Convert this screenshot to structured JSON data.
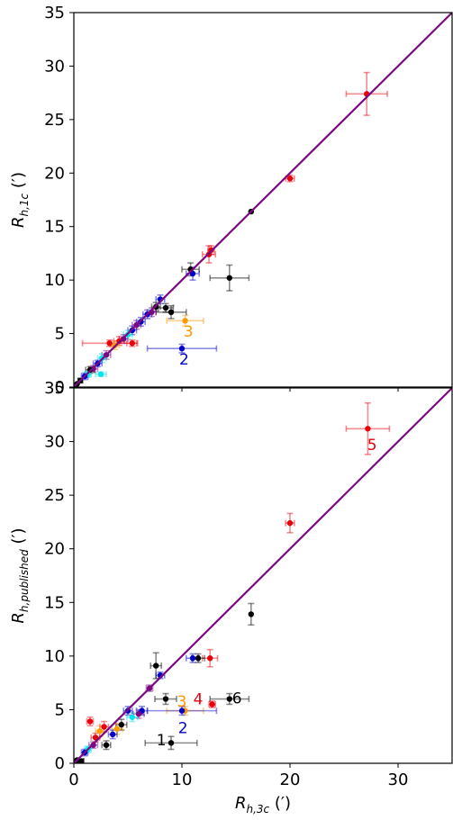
{
  "chart_data": [
    {
      "type": "scatter",
      "panel": "top",
      "xlim": [
        0,
        35
      ],
      "ylim": [
        0,
        35
      ],
      "x_ticks": [
        "0",
        "10",
        "20",
        "30"
      ],
      "y_ticks": [
        "0",
        "5",
        "10",
        "15",
        "20",
        "25",
        "30",
        "35"
      ],
      "xlabel": "",
      "ylabel": {
        "main": "R",
        "sub": "h,1c",
        "unit": " (′)"
      },
      "one_to_one_line": {
        "x": [
          0,
          35
        ],
        "y": [
          0,
          35
        ],
        "color": "#7b0a82"
      },
      "points": [
        {
          "x": 27.1,
          "y": 27.4,
          "xerr": 1.9,
          "yerr": 2.0,
          "color": "#e8000b"
        },
        {
          "x": 20.0,
          "y": 19.5,
          "xerr": 0.4,
          "yerr": 0.3,
          "color": "#e8000b"
        },
        {
          "x": 16.4,
          "y": 16.4,
          "xerr": 0.0,
          "yerr": 0.0,
          "color": "#000000"
        },
        {
          "x": 14.4,
          "y": 10.2,
          "xerr": 1.8,
          "yerr": 1.2,
          "color": "#000000"
        },
        {
          "x": 12.7,
          "y": 12.8,
          "xerr": 0.3,
          "yerr": 0.4,
          "color": "#e8000b"
        },
        {
          "x": 12.5,
          "y": 12.4,
          "xerr": 0.6,
          "yerr": 0.8,
          "color": "#e8000b"
        },
        {
          "x": 11.0,
          "y": 10.6,
          "xerr": 0.6,
          "yerr": 0.6,
          "color": "#0000cc"
        },
        {
          "x": 10.8,
          "y": 11.0,
          "xerr": 0.8,
          "yerr": 0.6,
          "color": "#000000"
        },
        {
          "x": 10.3,
          "y": 6.2,
          "xerr": 1.7,
          "yerr": 0.5,
          "color": "#ff9900"
        },
        {
          "x": 10.0,
          "y": 3.6,
          "xerr": 3.2,
          "yerr": 0.4,
          "color": "#0000cc"
        },
        {
          "x": 9.0,
          "y": 7.0,
          "xerr": 1.4,
          "yerr": 0.6,
          "color": "#000000"
        },
        {
          "x": 8.5,
          "y": 7.4,
          "xerr": 0.7,
          "yerr": 0.4,
          "color": "#000000"
        },
        {
          "x": 8.0,
          "y": 8.2,
          "xerr": 0.4,
          "yerr": 0.4,
          "color": "#0000cc"
        },
        {
          "x": 7.6,
          "y": 7.5,
          "xerr": 0.4,
          "yerr": 0.4,
          "color": "#000000"
        },
        {
          "x": 7.2,
          "y": 7.0,
          "xerr": 0.4,
          "yerr": 0.4,
          "color": "#7b0a82"
        },
        {
          "x": 6.8,
          "y": 6.8,
          "xerr": 0.4,
          "yerr": 0.4,
          "color": "#0000cc"
        },
        {
          "x": 6.2,
          "y": 6.1,
          "xerr": 0.4,
          "yerr": 0.4,
          "color": "#0000cc"
        },
        {
          "x": 5.8,
          "y": 5.8,
          "xerr": 0.4,
          "yerr": 0.4,
          "color": "#7b0a82"
        },
        {
          "x": 5.4,
          "y": 5.3,
          "xerr": 0.4,
          "yerr": 0.4,
          "color": "#0000cc"
        },
        {
          "x": 5.4,
          "y": 4.1,
          "xerr": 0.5,
          "yerr": 0.3,
          "color": "#e8000b"
        },
        {
          "x": 5.0,
          "y": 4.9,
          "xerr": 0.4,
          "yerr": 0.4,
          "color": "#00e5ee"
        },
        {
          "x": 4.6,
          "y": 4.5,
          "xerr": 0.4,
          "yerr": 0.4,
          "color": "#7b0a82"
        },
        {
          "x": 4.2,
          "y": 4.3,
          "xerr": 0.5,
          "yerr": 0.4,
          "color": "#e8000b"
        },
        {
          "x": 3.8,
          "y": 3.9,
          "xerr": 0.4,
          "yerr": 0.4,
          "color": "#ff9900"
        },
        {
          "x": 3.3,
          "y": 4.1,
          "xerr": 2.5,
          "yerr": 0.3,
          "color": "#e8000b"
        },
        {
          "x": 3.0,
          "y": 3.0,
          "xerr": 0.4,
          "yerr": 0.4,
          "color": "#7b0a82"
        },
        {
          "x": 2.6,
          "y": 2.7,
          "xerr": 0.4,
          "yerr": 0.4,
          "color": "#00e5ee"
        },
        {
          "x": 2.5,
          "y": 1.2,
          "xerr": 0.5,
          "yerr": 0.2,
          "color": "#00e5ee"
        },
        {
          "x": 2.2,
          "y": 2.2,
          "xerr": 0.4,
          "yerr": 0.3,
          "color": "#0000cc"
        },
        {
          "x": 1.8,
          "y": 1.7,
          "xerr": 0.4,
          "yerr": 0.3,
          "color": "#7b0a82"
        },
        {
          "x": 1.5,
          "y": 1.6,
          "xerr": 0.4,
          "yerr": 0.3,
          "color": "#000000"
        },
        {
          "x": 1.3,
          "y": 1.2,
          "xerr": 0.3,
          "yerr": 0.3,
          "color": "#00e5ee"
        },
        {
          "x": 1.0,
          "y": 1.0,
          "xerr": 0.3,
          "yerr": 0.3,
          "color": "#0000cc"
        },
        {
          "x": 0.6,
          "y": 0.6,
          "xerr": 0.2,
          "yerr": 0.2,
          "color": "#000000"
        },
        {
          "x": 0.3,
          "y": 0.3,
          "xerr": 0.0,
          "yerr": 0.0,
          "color": "#000000"
        }
      ],
      "annotations": [
        {
          "text": "3",
          "x": 10.6,
          "y": 5.2,
          "color": "#ff9900"
        },
        {
          "text": "2",
          "x": 10.2,
          "y": 2.6,
          "color": "#0000cc"
        }
      ]
    },
    {
      "type": "scatter",
      "panel": "bottom",
      "xlim": [
        0,
        35
      ],
      "ylim": [
        0,
        35
      ],
      "x_ticks": [
        "0",
        "10",
        "20",
        "30"
      ],
      "y_ticks": [
        "0",
        "5",
        "10",
        "15",
        "20",
        "25",
        "30",
        "35"
      ],
      "xlabel": {
        "main": "R",
        "sub": "h,3c",
        "unit": " (′)"
      },
      "ylabel": {
        "main": "R",
        "sub": "h,published",
        "unit": " (′)"
      },
      "one_to_one_line": {
        "x": [
          0,
          35
        ],
        "y": [
          0,
          35
        ],
        "color": "#7b0a82"
      },
      "points": [
        {
          "x": 27.2,
          "y": 31.2,
          "xerr": 2.0,
          "yerr": 2.4,
          "color": "#e8000b"
        },
        {
          "x": 20.0,
          "y": 22.4,
          "xerr": 0.4,
          "yerr": 0.9,
          "color": "#e8000b"
        },
        {
          "x": 16.4,
          "y": 13.9,
          "xerr": 0.0,
          "yerr": 1.0,
          "color": "#000000"
        },
        {
          "x": 14.4,
          "y": 6.0,
          "xerr": 1.8,
          "yerr": 0.5,
          "color": "#000000"
        },
        {
          "x": 12.8,
          "y": 5.5,
          "xerr": 0.3,
          "yerr": 0.3,
          "color": "#e8000b"
        },
        {
          "x": 12.6,
          "y": 9.8,
          "xerr": 0.7,
          "yerr": 0.8,
          "color": "#e8000b"
        },
        {
          "x": 11.5,
          "y": 9.8,
          "xerr": 0.6,
          "yerr": 0.4,
          "color": "#000000"
        },
        {
          "x": 11.0,
          "y": 9.8,
          "xerr": 0.6,
          "yerr": 0.4,
          "color": "#0000cc"
        },
        {
          "x": 10.3,
          "y": 4.9,
          "xerr": 1.7,
          "yerr": 0.4,
          "color": "#ff9900"
        },
        {
          "x": 10.0,
          "y": 4.9,
          "xerr": 3.2,
          "yerr": 0.4,
          "color": "#0000cc"
        },
        {
          "x": 9.0,
          "y": 1.9,
          "xerr": 2.4,
          "yerr": 0.6,
          "color": "#000000"
        },
        {
          "x": 8.5,
          "y": 6.0,
          "xerr": 1.0,
          "yerr": 0.5,
          "color": "#000000"
        },
        {
          "x": 8.0,
          "y": 8.2,
          "xerr": 0.4,
          "yerr": 0.3,
          "color": "#0000cc"
        },
        {
          "x": 7.6,
          "y": 9.1,
          "xerr": 0.5,
          "yerr": 1.2,
          "color": "#000000"
        },
        {
          "x": 7.0,
          "y": 7.0,
          "xerr": 0.3,
          "yerr": 0.3,
          "color": "#7b0a82"
        },
        {
          "x": 6.3,
          "y": 4.9,
          "xerr": 0.5,
          "yerr": 0.4,
          "color": "#0000cc"
        },
        {
          "x": 6.0,
          "y": 4.6,
          "xerr": 0.5,
          "yerr": 0.4,
          "color": "#7b0a82"
        },
        {
          "x": 5.4,
          "y": 4.3,
          "xerr": 0.5,
          "yerr": 0.4,
          "color": "#00e5ee"
        },
        {
          "x": 5.0,
          "y": 4.9,
          "xerr": 0.4,
          "yerr": 0.4,
          "color": "#0000cc"
        },
        {
          "x": 4.4,
          "y": 3.6,
          "xerr": 0.5,
          "yerr": 0.5,
          "color": "#000000"
        },
        {
          "x": 4.0,
          "y": 3.2,
          "xerr": 0.5,
          "yerr": 0.5,
          "color": "#ff9900"
        },
        {
          "x": 3.6,
          "y": 2.7,
          "xerr": 0.4,
          "yerr": 0.4,
          "color": "#0000cc"
        },
        {
          "x": 3.0,
          "y": 1.7,
          "xerr": 0.4,
          "yerr": 0.4,
          "color": "#000000"
        },
        {
          "x": 2.8,
          "y": 3.4,
          "xerr": 0.4,
          "yerr": 0.5,
          "color": "#e8000b"
        },
        {
          "x": 2.4,
          "y": 3.0,
          "xerr": 0.4,
          "yerr": 0.5,
          "color": "#ff9900"
        },
        {
          "x": 2.0,
          "y": 2.4,
          "xerr": 0.4,
          "yerr": 0.4,
          "color": "#e8000b"
        },
        {
          "x": 1.8,
          "y": 1.7,
          "xerr": 0.4,
          "yerr": 0.3,
          "color": "#7b0a82"
        },
        {
          "x": 1.5,
          "y": 3.9,
          "xerr": 0.3,
          "yerr": 0.4,
          "color": "#e8000b"
        },
        {
          "x": 1.3,
          "y": 1.3,
          "xerr": 0.3,
          "yerr": 0.3,
          "color": "#00e5ee"
        },
        {
          "x": 1.0,
          "y": 1.0,
          "xerr": 0.3,
          "yerr": 0.3,
          "color": "#0000cc"
        },
        {
          "x": 0.7,
          "y": 0.2,
          "xerr": 0.2,
          "yerr": 0.2,
          "color": "#000000"
        },
        {
          "x": 0.3,
          "y": 0.3,
          "xerr": 0.0,
          "yerr": 0.0,
          "color": "#000000"
        }
      ],
      "annotations": [
        {
          "text": "5",
          "x": 27.6,
          "y": 29.7,
          "color": "#e8000b"
        },
        {
          "text": "6",
          "x": 15.1,
          "y": 6.1,
          "color": "#000000"
        },
        {
          "text": "4",
          "x": 11.5,
          "y": 6.0,
          "color": "#e8000b"
        },
        {
          "text": "3",
          "x": 10.0,
          "y": 5.8,
          "color": "#ff9900"
        },
        {
          "text": "2",
          "x": 10.1,
          "y": 3.3,
          "color": "#0000cc"
        },
        {
          "text": "1",
          "x": 8.1,
          "y": 2.2,
          "color": "#000000"
        }
      ]
    }
  ]
}
